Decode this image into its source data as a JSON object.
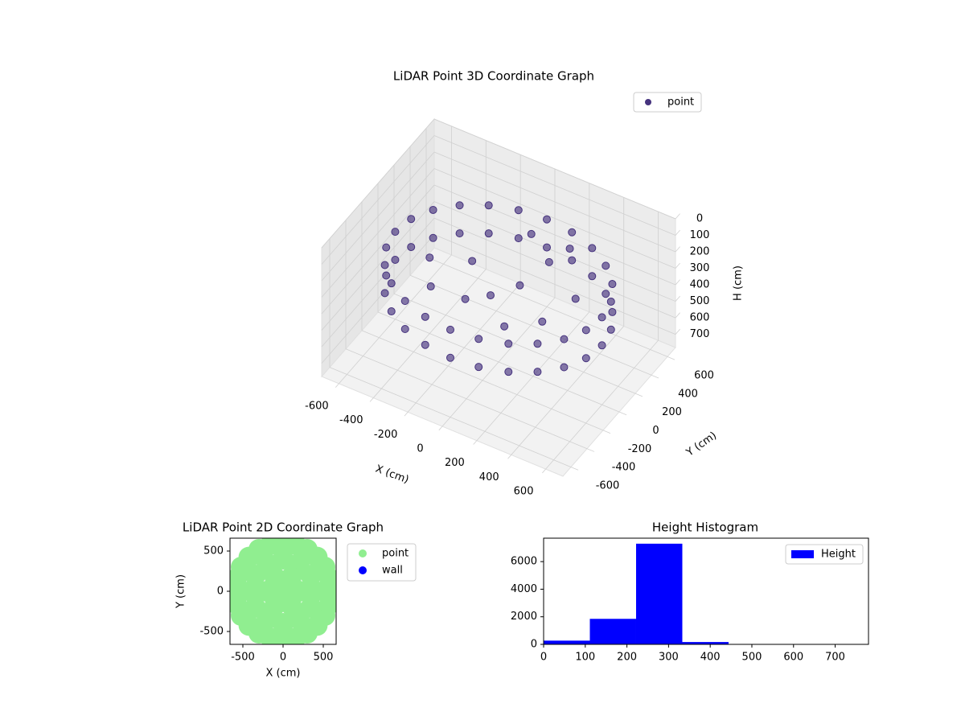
{
  "chart_data": [
    {
      "type": "scatter3d",
      "title": "LiDAR Point 3D Coordinate Graph",
      "xlabel": "X (cm)",
      "ylabel": "Y (cm)",
      "zlabel": "H (cm)",
      "xlim": [
        -700,
        700
      ],
      "ylim": [
        -700,
        700
      ],
      "zlim": [
        0,
        780
      ],
      "z_inverted": true,
      "xticks": [
        -600,
        -400,
        -200,
        0,
        200,
        400,
        600
      ],
      "yticks": [
        -600,
        -400,
        -200,
        0,
        200,
        400,
        600
      ],
      "zticks": [
        0,
        100,
        200,
        300,
        400,
        500,
        600,
        700
      ],
      "series": [
        {
          "name": "point",
          "color": "#46337e",
          "x": [
            600,
            580,
            520,
            424,
            300,
            155,
            0,
            -155,
            -300,
            -424,
            -520,
            -580,
            -600,
            -580,
            -520,
            -424,
            -300,
            -155,
            0,
            155,
            300,
            424,
            520,
            580,
            600,
            580,
            520,
            424,
            300,
            155,
            0,
            -155,
            -300,
            -424,
            -520,
            -580,
            -600,
            -580,
            -520,
            -424,
            -300,
            -155,
            0,
            155,
            300,
            424,
            520,
            580,
            100,
            0,
            -200,
            200,
            300,
            -100,
            50,
            -300,
            150,
            400,
            -400,
            250
          ],
          "y": [
            0,
            155,
            300,
            424,
            520,
            580,
            600,
            580,
            520,
            424,
            300,
            155,
            0,
            -155,
            -300,
            -424,
            -520,
            -580,
            -600,
            -580,
            -520,
            -424,
            -300,
            -155,
            0,
            155,
            300,
            424,
            520,
            580,
            600,
            580,
            520,
            424,
            300,
            155,
            0,
            -155,
            -300,
            -424,
            -520,
            -580,
            -600,
            -580,
            -520,
            -424,
            -300,
            -155,
            50,
            -100,
            100,
            200,
            -100,
            -200,
            300,
            -200,
            -250,
            100,
            0,
            350
          ],
          "z": [
            250,
            250,
            250,
            250,
            250,
            250,
            250,
            250,
            250,
            250,
            250,
            250,
            250,
            250,
            250,
            250,
            250,
            250,
            250,
            250,
            250,
            250,
            250,
            250,
            420,
            420,
            420,
            420,
            420,
            420,
            420,
            420,
            420,
            420,
            420,
            420,
            420,
            420,
            420,
            420,
            420,
            420,
            420,
            420,
            420,
            420,
            420,
            420,
            300,
            320,
            310,
            200,
            350,
            330,
            150,
            340,
            360,
            280,
            320,
            180
          ]
        }
      ]
    },
    {
      "type": "scatter",
      "title": "LiDAR Point 2D Coordinate Graph",
      "xlabel": "X (cm)",
      "ylabel": "Y (cm)",
      "xlim": [
        -660,
        660
      ],
      "ylim": [
        -660,
        660
      ],
      "xticks": [
        -500,
        0,
        500
      ],
      "yticks": [
        -500,
        0,
        500
      ],
      "series": [
        {
          "name": "point",
          "color": "#90ee90",
          "x": [
            600,
            580,
            520,
            424,
            300,
            155,
            0,
            -155,
            -300,
            -424,
            -520,
            -580,
            -600,
            -580,
            -520,
            -424,
            -300,
            -155,
            0,
            155,
            300,
            424,
            520,
            580,
            400,
            346,
            200,
            0,
            -200,
            -346,
            -400,
            -346,
            -200,
            0,
            200,
            346,
            200,
            100,
            -100,
            -200,
            -100,
            100,
            0
          ],
          "y": [
            0,
            155,
            300,
            424,
            520,
            580,
            600,
            580,
            520,
            424,
            300,
            155,
            0,
            -155,
            -300,
            -424,
            -520,
            -580,
            -600,
            -580,
            -520,
            -424,
            -300,
            -155,
            0,
            200,
            346,
            400,
            346,
            200,
            0,
            -200,
            -346,
            -400,
            -346,
            -200,
            0,
            173,
            173,
            0,
            -173,
            -173,
            0
          ]
        },
        {
          "name": "wall",
          "color": "#0000ff",
          "x": [],
          "y": []
        }
      ]
    },
    {
      "type": "histogram",
      "title": "Height Histogram",
      "color": "#0000ff",
      "legend_label": "Height",
      "bins": [
        0,
        111,
        222,
        333,
        444,
        555,
        666,
        777
      ],
      "values": [
        270,
        1850,
        7300,
        170,
        20,
        5,
        5
      ],
      "xlim": [
        0,
        780
      ],
      "ylim": [
        0,
        7700
      ],
      "xticks": [
        0,
        100,
        200,
        300,
        400,
        500,
        600,
        700
      ],
      "yticks": [
        0,
        2000,
        4000,
        6000
      ]
    }
  ]
}
